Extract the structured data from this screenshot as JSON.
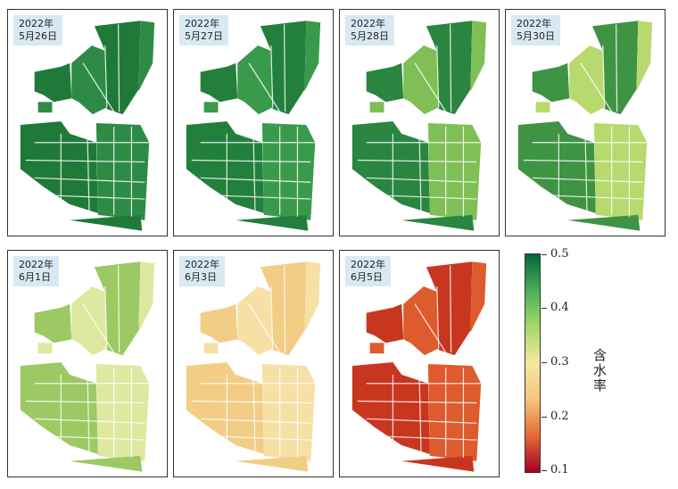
{
  "panels": [
    {
      "line1": "2022年",
      "line2": "5月26日",
      "fill": "#1f7a3a",
      "fill2": "#2e8b45"
    },
    {
      "line1": "2022年",
      "line2": "5月27日",
      "fill": "#22803c",
      "fill2": "#3a9a4c"
    },
    {
      "line1": "2022年",
      "line2": "5月28日",
      "fill": "#2a8540",
      "fill2": "#7fbf55"
    },
    {
      "line1": "2022年",
      "line2": "5月30日",
      "fill": "#3f9444",
      "fill2": "#b8d96e"
    },
    {
      "line1": "2022年",
      "line2": "6月1日",
      "fill": "#9cc963",
      "fill2": "#dfe8a0"
    },
    {
      "line1": "2022年",
      "line2": "6月3日",
      "fill": "#f2cd85",
      "fill2": "#f7e0a6"
    },
    {
      "line1": "2022年",
      "line2": "6月5日",
      "fill": "#c8361f",
      "fill2": "#dd5b2c"
    }
  ],
  "colorbar": {
    "title": "含水率",
    "ticks": [
      "0.5",
      "0.4",
      "0.3",
      "0.2",
      "0.1"
    ],
    "range": [
      0.08,
      0.5
    ],
    "colors": [
      "#006837",
      "#4cae5a",
      "#a6d86a",
      "#f4e8a0",
      "#f5c57a",
      "#e46a33",
      "#a50026"
    ]
  }
}
